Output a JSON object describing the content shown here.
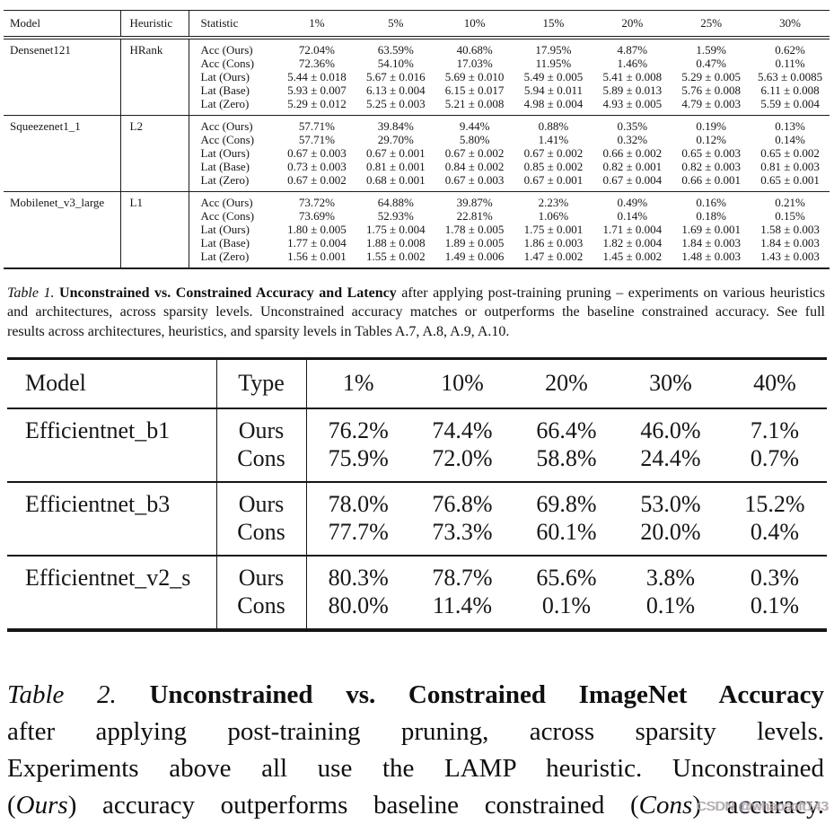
{
  "page": {
    "background": "#ffffff",
    "text_color": "#161616",
    "rule_color": "#1c1c1c"
  },
  "table1": {
    "columns": [
      "Model",
      "Heuristic",
      "Statistic",
      "1%",
      "5%",
      "10%",
      "15%",
      "20%",
      "25%",
      "30%"
    ],
    "groups": [
      {
        "model": "Densenet121",
        "heuristic": "HRank",
        "rows": [
          {
            "statistic": "Acc (Ours)",
            "values": [
              "72.04%",
              "63.59%",
              "40.68%",
              "17.95%",
              "4.87%",
              "1.59%",
              "0.62%"
            ]
          },
          {
            "statistic": "Acc (Cons)",
            "values": [
              "72.36%",
              "54.10%",
              "17.03%",
              "11.95%",
              "1.46%",
              "0.47%",
              "0.11%"
            ]
          },
          {
            "statistic": "Lat (Ours)",
            "values": [
              "5.44 ± 0.018",
              "5.67 ± 0.016",
              "5.69 ± 0.010",
              "5.49 ± 0.005",
              "5.41 ± 0.008",
              "5.29 ± 0.005",
              "5.63 ± 0.0085"
            ]
          },
          {
            "statistic": "Lat (Base)",
            "values": [
              "5.93 ± 0.007",
              "6.13 ± 0.004",
              "6.15 ± 0.017",
              "5.94 ± 0.011",
              "5.89 ± 0.013",
              "5.76 ± 0.008",
              "6.11 ± 0.008"
            ]
          },
          {
            "statistic": "Lat (Zero)",
            "values": [
              "5.29 ± 0.012",
              "5.25 ± 0.003",
              "5.21 ± 0.008",
              "4.98 ± 0.004",
              "4.93 ± 0.005",
              "4.79 ± 0.003",
              "5.59 ± 0.004"
            ]
          }
        ]
      },
      {
        "model": "Squeezenet1_1",
        "heuristic": "L2",
        "rows": [
          {
            "statistic": "Acc (Ours)",
            "values": [
              "57.71%",
              "39.84%",
              "9.44%",
              "0.88%",
              "0.35%",
              "0.19%",
              "0.13%"
            ]
          },
          {
            "statistic": "Acc (Cons)",
            "values": [
              "57.71%",
              "29.70%",
              "5.80%",
              "1.41%",
              "0.32%",
              "0.12%",
              "0.14%"
            ]
          },
          {
            "statistic": "Lat (Ours)",
            "values": [
              "0.67 ± 0.003",
              "0.67 ± 0.001",
              "0.67 ± 0.002",
              "0.67 ± 0.002",
              "0.66 ± 0.002",
              "0.65 ± 0.003",
              "0.65 ± 0.002"
            ]
          },
          {
            "statistic": "Lat (Base)",
            "values": [
              "0.73 ± 0.003",
              "0.81 ± 0.001",
              "0.84 ± 0.002",
              "0.85 ± 0.002",
              "0.82 ± 0.001",
              "0.82 ± 0.003",
              "0.81 ± 0.003"
            ]
          },
          {
            "statistic": "Lat (Zero)",
            "values": [
              "0.67 ± 0.002",
              "0.68 ± 0.001",
              "0.67 ± 0.003",
              "0.67 ± 0.001",
              "0.67 ± 0.004",
              "0.66 ± 0.001",
              "0.65 ± 0.001"
            ]
          }
        ]
      },
      {
        "model": "Mobilenet_v3_large",
        "heuristic": "L1",
        "rows": [
          {
            "statistic": "Acc (Ours)",
            "values": [
              "73.72%",
              "64.88%",
              "39.87%",
              "2.23%",
              "0.49%",
              "0.16%",
              "0.21%"
            ]
          },
          {
            "statistic": "Acc (Cons)",
            "values": [
              "73.69%",
              "52.93%",
              "22.81%",
              "1.06%",
              "0.14%",
              "0.18%",
              "0.15%"
            ]
          },
          {
            "statistic": "Lat (Ours)",
            "values": [
              "1.80 ± 0.005",
              "1.75 ± 0.004",
              "1.78 ± 0.005",
              "1.75 ± 0.001",
              "1.71 ± 0.004",
              "1.69 ± 0.001",
              "1.58 ± 0.003"
            ]
          },
          {
            "statistic": "Lat (Base)",
            "values": [
              "1.77 ± 0.004",
              "1.88 ± 0.008",
              "1.89 ± 0.005",
              "1.86 ± 0.003",
              "1.82 ± 0.004",
              "1.84 ± 0.003",
              "1.84 ± 0.003"
            ]
          },
          {
            "statistic": "Lat (Zero)",
            "values": [
              "1.56 ± 0.001",
              "1.55 ± 0.002",
              "1.49 ± 0.006",
              "1.47 ± 0.002",
              "1.45 ± 0.002",
              "1.48 ± 0.003",
              "1.43 ± 0.003"
            ]
          }
        ]
      }
    ],
    "caption_lines": [
      [
        {
          "s": "i",
          "t": "Table 1."
        },
        {
          "s": "b",
          "t": " Unconstrained vs. Constrained Accuracy and Latency"
        },
        {
          "s": "n",
          "t": " after applying post-training pruning – experiments on various heuristics"
        }
      ],
      [
        {
          "s": "n",
          "t": "and architectures, across sparsity levels. Unconstrained accuracy matches or outperforms the baseline constrained accuracy. See full"
        }
      ],
      [
        {
          "s": "n",
          "t": "results across architectures, heuristics, and sparsity levels in Tables A.7, A.8, A.9, A.10."
        }
      ]
    ]
  },
  "table2": {
    "columns": [
      "Model",
      "Type",
      "1%",
      "10%",
      "20%",
      "30%",
      "40%"
    ],
    "groups": [
      {
        "model": "Efficientnet_b1",
        "rows": [
          {
            "type": "Ours",
            "values": [
              "76.2%",
              "74.4%",
              "66.4%",
              "46.0%",
              "7.1%"
            ]
          },
          {
            "type": "Cons",
            "values": [
              "75.9%",
              "72.0%",
              "58.8%",
              "24.4%",
              "0.7%"
            ]
          }
        ]
      },
      {
        "model": "Efficientnet_b3",
        "rows": [
          {
            "type": "Ours",
            "values": [
              "78.0%",
              "76.8%",
              "69.8%",
              "53.0%",
              "15.2%"
            ]
          },
          {
            "type": "Cons",
            "values": [
              "77.7%",
              "73.3%",
              "60.1%",
              "20.0%",
              "0.4%"
            ]
          }
        ]
      },
      {
        "model": "Efficientnet_v2_s",
        "rows": [
          {
            "type": "Ours",
            "values": [
              "80.3%",
              "78.7%",
              "65.6%",
              "3.8%",
              "0.3%"
            ]
          },
          {
            "type": "Cons",
            "values": [
              "80.0%",
              "11.4%",
              "0.1%",
              "0.1%",
              "0.1%"
            ]
          }
        ]
      }
    ],
    "caption_lines": [
      [
        {
          "s": "i",
          "t": "Table 2."
        },
        {
          "s": "b",
          "t": "  Unconstrained vs. Constrained ImageNet Accuracy"
        }
      ],
      [
        {
          "s": "n",
          "t": "after applying post-training pruning, across sparsity levels."
        }
      ],
      [
        {
          "s": "n",
          "t": "Experiments above all use the LAMP heuristic.  Unconstrained"
        }
      ],
      [
        {
          "s": "n",
          "t": "("
        },
        {
          "s": "i",
          "t": "Ours"
        },
        {
          "s": "n",
          "t": ") accuracy outperforms baseline constrained ("
        },
        {
          "s": "i",
          "t": "Cons"
        },
        {
          "s": "n",
          "t": ") accuracy."
        }
      ]
    ]
  },
  "watermark": {
    "text": "CSDN @whaosoft143"
  }
}
